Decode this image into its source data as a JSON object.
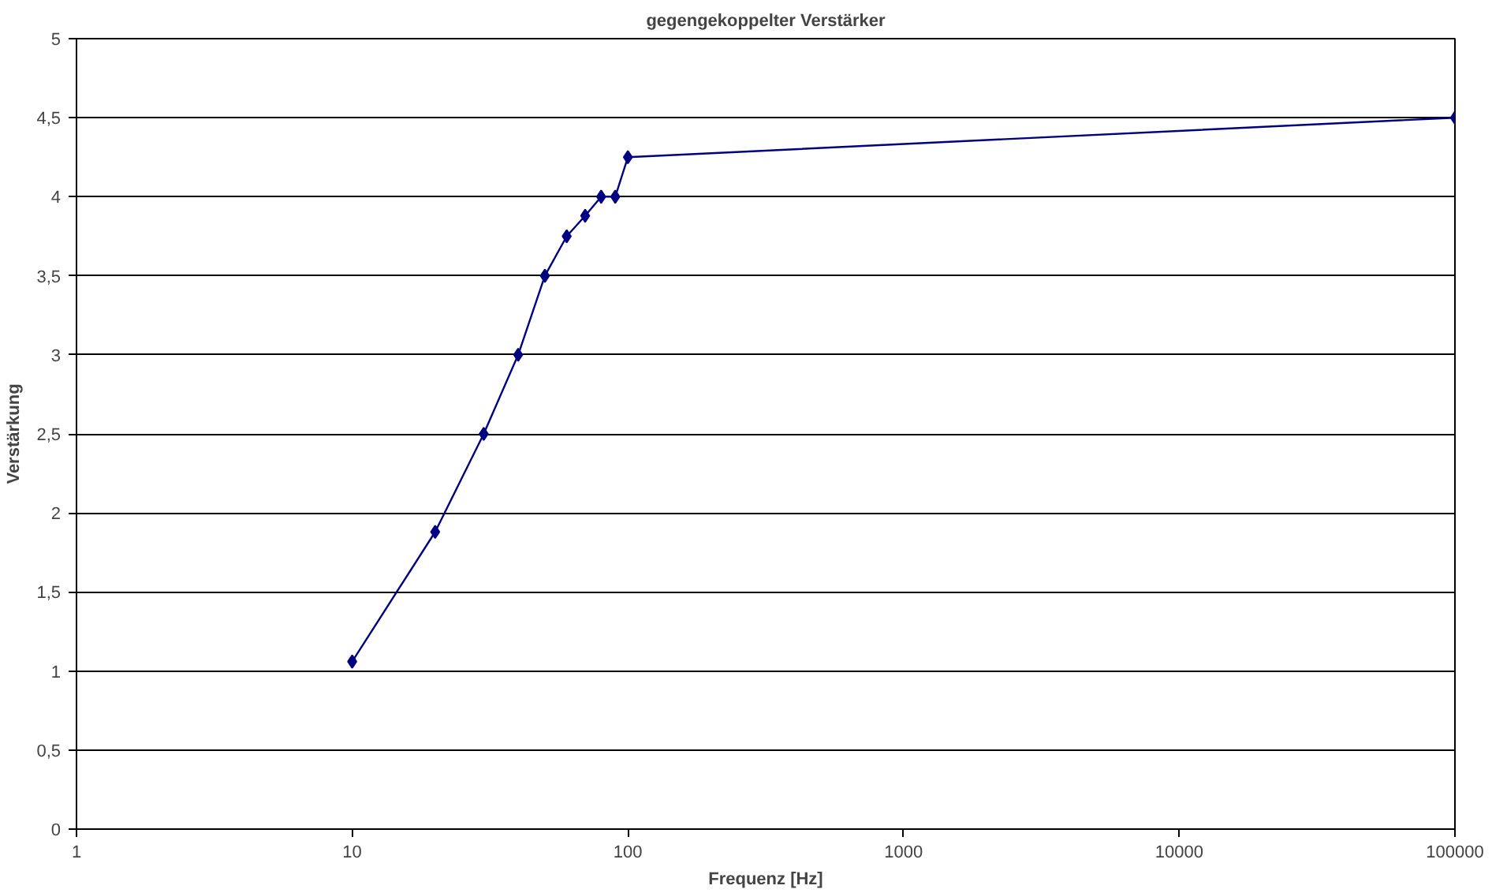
{
  "chart_data": {
    "type": "line",
    "title": "gegengekoppelter Verstärker",
    "xlabel": "Frequenz [Hz]",
    "ylabel": "Verstärkung",
    "log": "x",
    "grid": "y",
    "marker": "diamond",
    "line_style": "solid",
    "x": [
      10,
      20,
      30,
      40,
      50,
      60,
      70,
      80,
      90,
      100,
      100000
    ],
    "series": [
      {
        "color": "#000080",
        "values": [
          1.06,
          1.88,
          2.5,
          3,
          3.5,
          3.75,
          3.88,
          4,
          4,
          4.25,
          4.5
        ]
      }
    ],
    "xlim": [
      1,
      100000
    ],
    "xticks": [
      1,
      10,
      100,
      1000,
      10000,
      100000
    ],
    "ylim": [
      0,
      5
    ],
    "yticks": [
      0,
      {
        "value": 0.5,
        "label": "0,5"
      },
      1,
      {
        "value": 1.5,
        "label": "1,5"
      },
      2,
      {
        "value": 2.5,
        "label": "2,5"
      },
      3,
      {
        "value": 3.5,
        "label": "3,5"
      },
      4,
      {
        "value": 4.5,
        "label": "4,5"
      },
      5
    ]
  }
}
